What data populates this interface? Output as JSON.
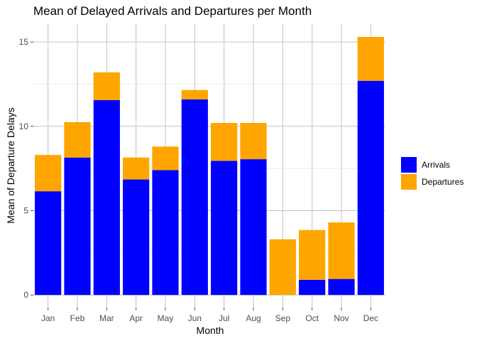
{
  "chart_data": {
    "type": "bar",
    "stacked": true,
    "title": "Mean of Delayed Arrivals and Departures per Month",
    "xlabel": "Month",
    "ylabel": "Mean of Departure Delays",
    "categories": [
      "Jan",
      "Feb",
      "Mar",
      "Apr",
      "May",
      "Jun",
      "Jul",
      "Aug",
      "Sep",
      "Oct",
      "Nov",
      "Dec"
    ],
    "series": [
      {
        "name": "Arrivals",
        "color": "#0000ff",
        "values": [
          6.15,
          8.15,
          11.55,
          6.85,
          7.4,
          11.6,
          7.95,
          8.05,
          0.0,
          0.9,
          0.95,
          12.7
        ]
      },
      {
        "name": "Departures",
        "color": "#ffa500",
        "values": [
          2.15,
          2.1,
          1.65,
          1.3,
          1.4,
          0.55,
          2.25,
          2.15,
          3.3,
          2.95,
          3.35,
          2.6
        ]
      }
    ],
    "ylim": [
      -0.75,
      16.1
    ],
    "yticks": [
      0,
      5,
      10,
      15
    ],
    "grid": true,
    "legend_position": "right"
  }
}
